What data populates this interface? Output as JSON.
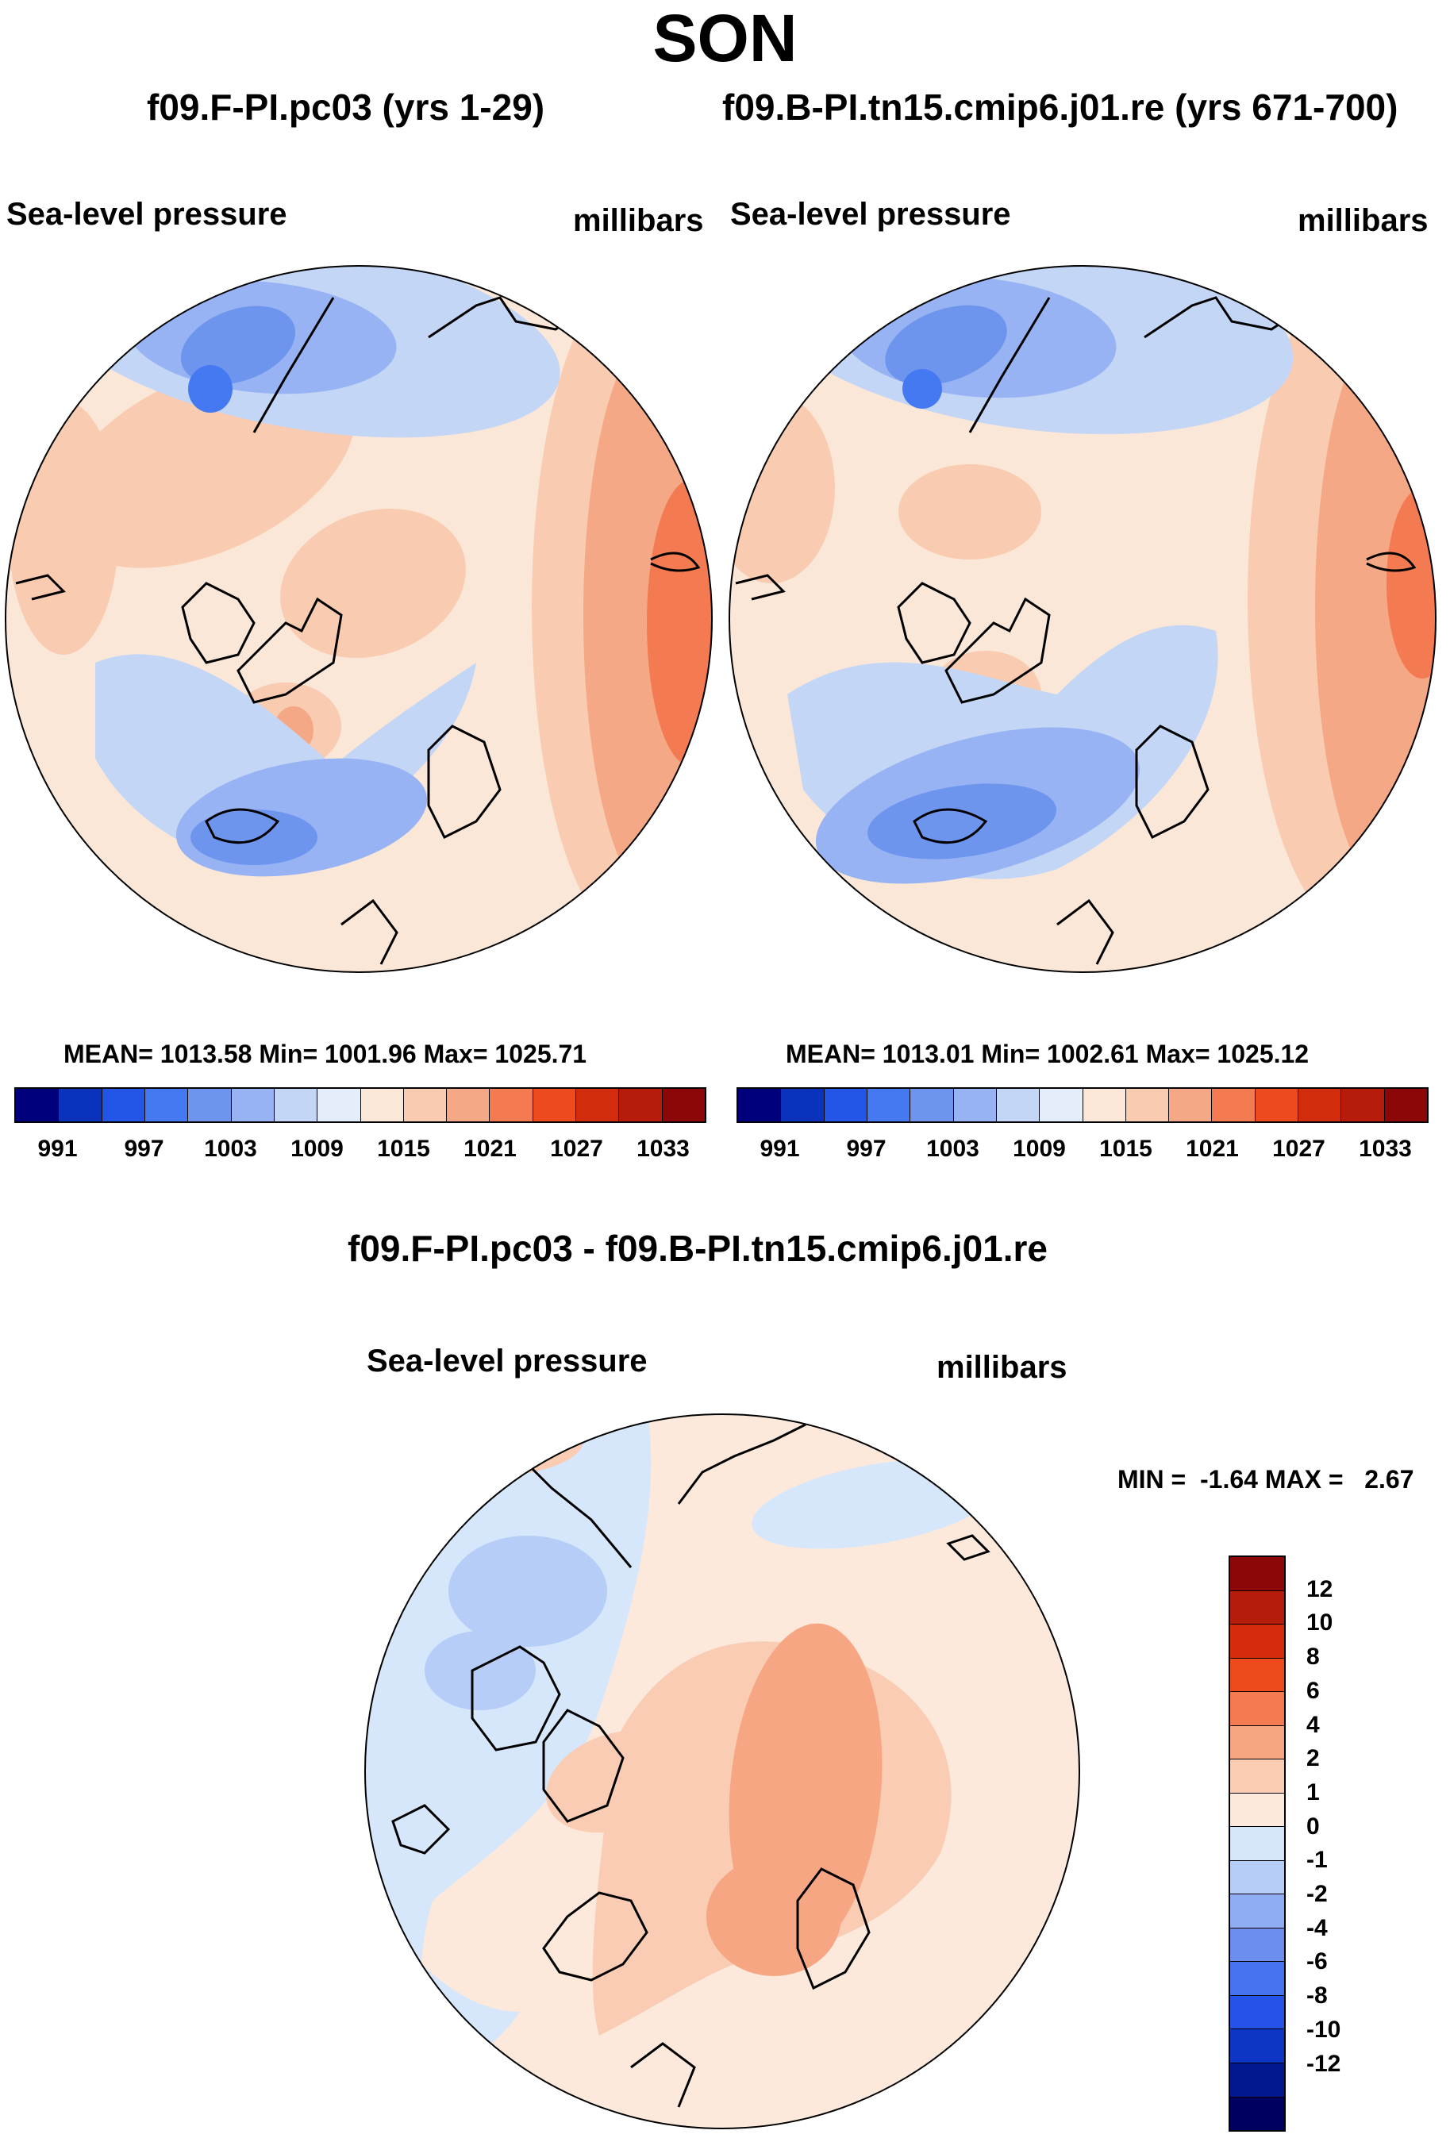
{
  "figure": {
    "title": "SON",
    "colors": {
      "abs": [
        "#00007d",
        "#0a32bb",
        "#2355e6",
        "#4579f2",
        "#6e95ee",
        "#97b3f3",
        "#c3d6f6",
        "#e4eefb",
        "#fbe7d7",
        "#f9cbb1",
        "#f5a885",
        "#f47b51",
        "#ed4b1d",
        "#d22c0c",
        "#b71c0a",
        "#8c0808"
      ],
      "diff": [
        "#8c0808",
        "#b71c0a",
        "#d62b0c",
        "#ee4a1b",
        "#f47b51",
        "#f6a682",
        "#f9ccb3",
        "#fce9db",
        "#d6e7fb",
        "#b5cdf7",
        "#8fadf2",
        "#6c8fee",
        "#4773f0",
        "#2553ea",
        "#0e36c6",
        "#03178f",
        "#000060"
      ]
    }
  },
  "chart_data": [
    {
      "type": "heatmap",
      "title": "f09.F-PI.pc03 (yrs 1-29)",
      "left_label": "Sea-level pressure",
      "right_label": "millibars",
      "stats": "MEAN= 1013.58  Min= 1001.96  Max= 1025.71",
      "mean": 1013.58,
      "min": 1001.96,
      "max": 1025.71,
      "colorbar_levels": [
        991,
        994,
        997,
        1000,
        1003,
        1006,
        1009,
        1012,
        1015,
        1018,
        1021,
        1024,
        1027,
        1030,
        1033
      ],
      "colorbar_tick_labels": [
        "991",
        "997",
        "1003",
        "1009",
        "1015",
        "1021",
        "1027",
        "1033"
      ]
    },
    {
      "type": "heatmap",
      "title": "f09.B-PI.tn15.cmip6.j01.re (yrs 671-700)",
      "left_label": "Sea-level pressure",
      "right_label": "millibars",
      "stats": "MEAN= 1013.01  Min= 1002.61  Max= 1025.12",
      "mean": 1013.01,
      "min": 1002.61,
      "max": 1025.12,
      "colorbar_levels": [
        991,
        994,
        997,
        1000,
        1003,
        1006,
        1009,
        1012,
        1015,
        1018,
        1021,
        1024,
        1027,
        1030,
        1033
      ],
      "colorbar_tick_labels": [
        "991",
        "997",
        "1003",
        "1009",
        "1015",
        "1021",
        "1027",
        "1033"
      ]
    },
    {
      "type": "heatmap",
      "title": "f09.F-PI.pc03 - f09.B-PI.tn15.cmip6.j01.re",
      "left_label": "Sea-level pressure",
      "right_label": "millibars",
      "stats": "MIN =  -1.64 MAX =   2.67",
      "min": -1.64,
      "max": 2.67,
      "colorbar_levels": [
        12,
        10,
        8,
        6,
        4,
        2,
        1,
        0,
        -1,
        -2,
        -4,
        -6,
        -8,
        -10,
        -12
      ],
      "colorbar_tick_labels": [
        "12",
        "10",
        "8",
        "6",
        "4",
        "2",
        "1",
        "0",
        "-1",
        "-2",
        "-4",
        "-6",
        "-8",
        "-10",
        "-12"
      ]
    }
  ]
}
